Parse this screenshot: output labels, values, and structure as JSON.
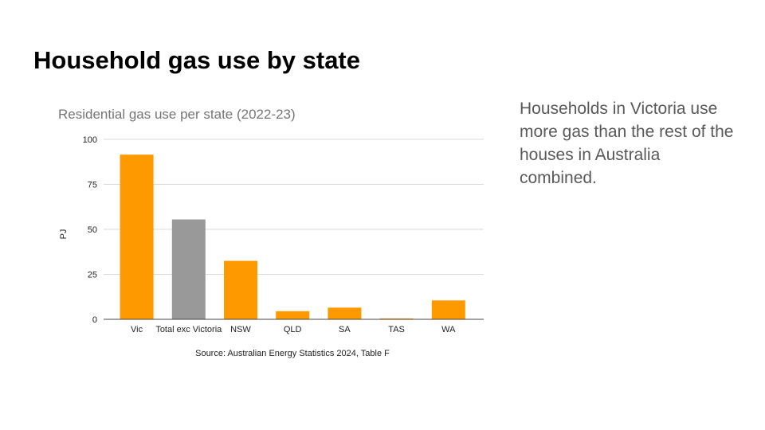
{
  "slide": {
    "title": "Household gas use by state",
    "callout": "Households in Victoria use more gas than the rest of the houses in Australia combined."
  },
  "colors": {
    "highlight": "#ff9900",
    "comparison": "#999999",
    "gridline": "#d9d9d9",
    "axis": "#444444"
  },
  "chart_data": {
    "type": "bar",
    "title": "Residential gas use per state (2022-23)",
    "xlabel": "Source: Australian Energy Statistics 2024, Table F",
    "ylabel": "PJ",
    "ylim": [
      0,
      100
    ],
    "yticks": [
      0,
      25,
      50,
      75,
      100
    ],
    "grid": true,
    "categories": [
      "Vic",
      "Total exc Victoria",
      "NSW",
      "QLD",
      "SA",
      "TAS",
      "WA"
    ],
    "values": [
      91.5,
      55.5,
      32.5,
      4.5,
      6.5,
      0.5,
      10.5
    ],
    "bar_colors": [
      "#ff9900",
      "#999999",
      "#ff9900",
      "#ff9900",
      "#ff9900",
      "#ff9900",
      "#ff9900"
    ]
  }
}
